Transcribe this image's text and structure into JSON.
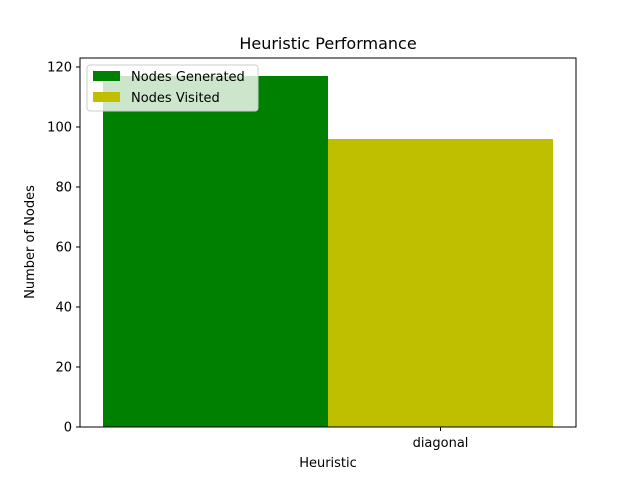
{
  "chart_data": {
    "type": "bar",
    "title": "Heuristic Performance",
    "xlabel": "Heuristic",
    "ylabel": "Number of Nodes",
    "categories": [
      "diagonal"
    ],
    "series": [
      {
        "name": "Nodes Generated",
        "values": [
          117
        ],
        "color": "#008000"
      },
      {
        "name": "Nodes Visited",
        "values": [
          96
        ],
        "color": "#bfbf00"
      }
    ],
    "ylim": [
      0,
      123
    ],
    "yticks": [
      0,
      20,
      40,
      60,
      80,
      100,
      120
    ],
    "grid": false,
    "legend_position": "top-left"
  }
}
